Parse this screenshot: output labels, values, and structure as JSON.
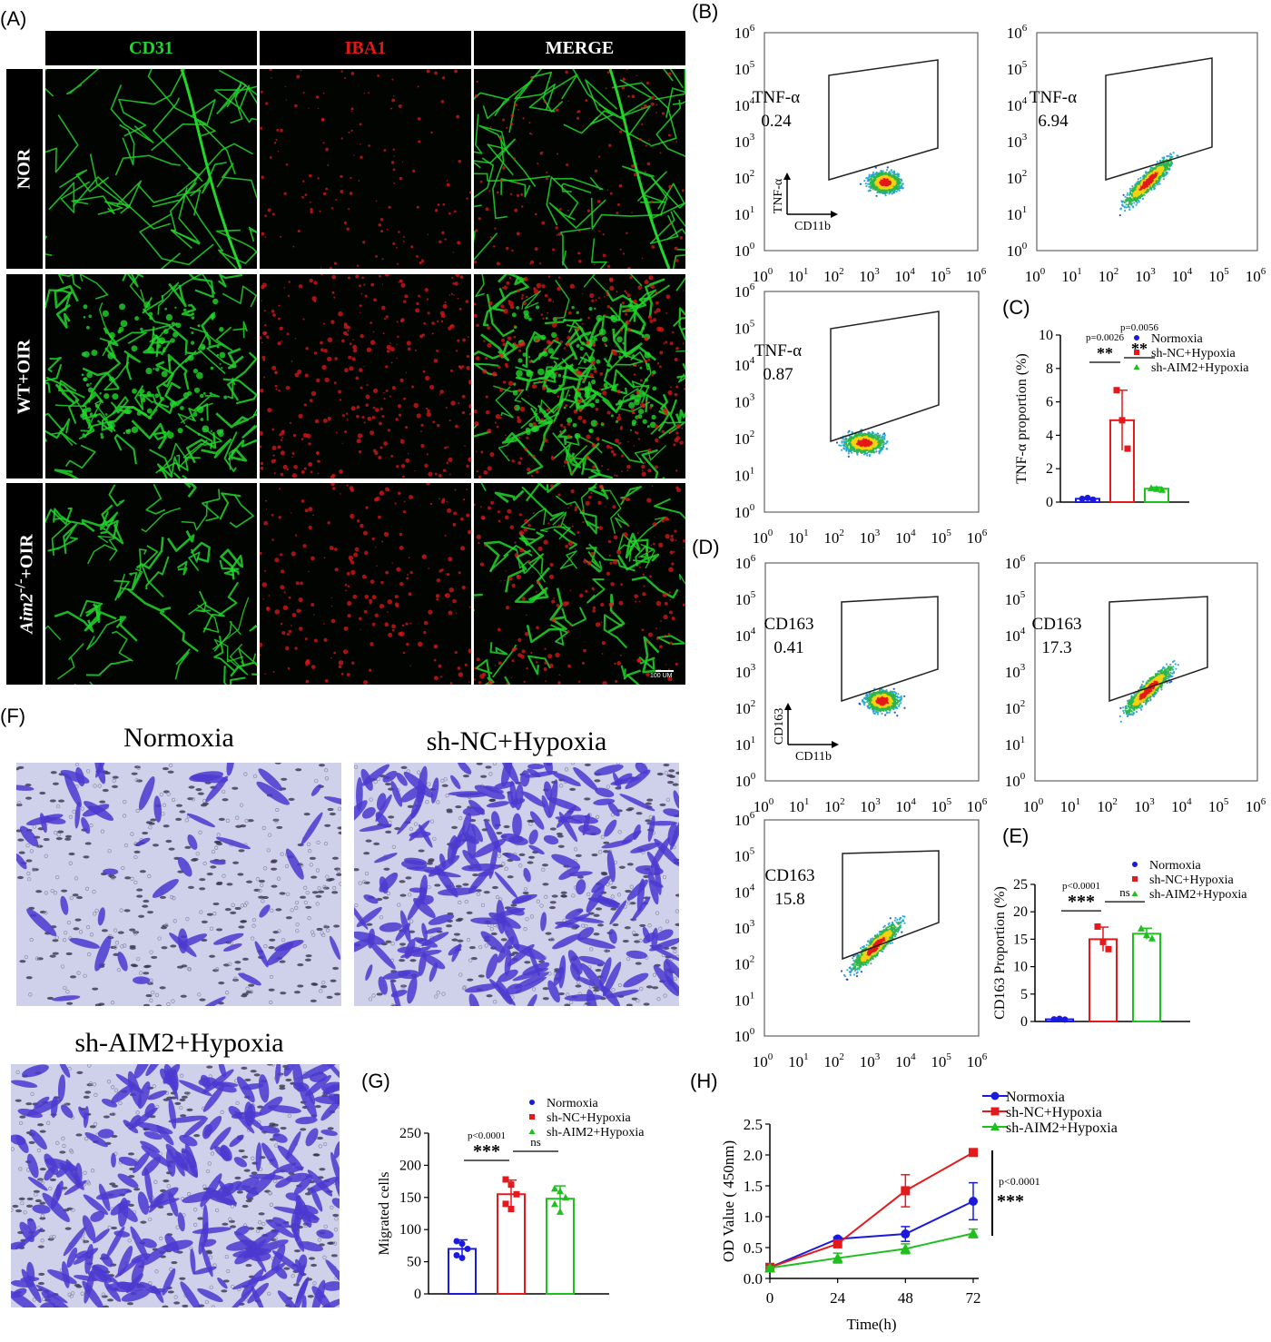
{
  "panel_labels": {
    "A": "(A)",
    "B": "(B)",
    "C": "(C)",
    "D": "(D)",
    "E": "(E)",
    "F": "(F)",
    "G": "(G)",
    "H": "(H)"
  },
  "colors": {
    "normoxia": "#1a1adf",
    "shnc": "#e3191c",
    "shaim2": "#1fbf1f",
    "cd31": "#22d62a",
    "iba1": "#e01818"
  },
  "panel_A": {
    "columns": [
      "CD31",
      "IBA1",
      "MERGE"
    ],
    "rows": [
      "NOR",
      "WT+OIR",
      "Aim2-/-+OIR"
    ],
    "row3_parts": {
      "gene": "Aim2",
      "sup": "-/-",
      "rest": "+OIR"
    },
    "scale_bar": "100 UM"
  },
  "flow_tnf": {
    "y_marker": "TNF-α",
    "x_marker": "CD11b",
    "tick_labels": [
      "10",
      "10",
      "10",
      "10",
      "10",
      "10",
      "10"
    ],
    "exponents": [
      "0",
      "1",
      "2",
      "3",
      "4",
      "5",
      "6"
    ],
    "plots": [
      {
        "gate_label": "TNF-α",
        "gate_value": "0.24"
      },
      {
        "gate_label": "TNF-α",
        "gate_value": "6.94"
      },
      {
        "gate_label": "TNF-α",
        "gate_value": "0.87"
      }
    ]
  },
  "flow_cd163": {
    "y_marker": "CD163",
    "x_marker": "CD11b",
    "plots": [
      {
        "gate_label": "CD163",
        "gate_value": "0.41"
      },
      {
        "gate_label": "CD163",
        "gate_value": "17.3"
      },
      {
        "gate_label": "CD163",
        "gate_value": "15.8"
      }
    ]
  },
  "legend": [
    "Normoxia",
    "sh-NC+Hypoxia",
    "sh-AIM2+Hypoxia"
  ],
  "panel_F": {
    "titles": [
      "Normoxia",
      "sh-NC+Hypoxia",
      "sh-AIM2+Hypoxia"
    ]
  },
  "chart_data": [
    {
      "panel": "C",
      "type": "bar",
      "categories": [
        "Normoxia",
        "sh-NC+Hypoxia",
        "sh-AIM2+Hypoxia"
      ],
      "values": [
        0.2,
        4.9,
        0.8
      ],
      "errors": [
        0.05,
        1.8,
        0.1
      ],
      "points": [
        [
          0.2,
          0.25,
          0.15
        ],
        [
          6.7,
          4.9,
          3.2
        ],
        [
          0.85,
          0.8,
          0.75
        ]
      ],
      "ylabel": "TNF-α proportion (%)",
      "ylim": [
        0,
        10
      ],
      "yticks": [
        0,
        2,
        4,
        6,
        8,
        10
      ],
      "annotations": [
        {
          "text": "p=0.0026",
          "stars": "**"
        },
        {
          "text": "p=0.0056",
          "stars": "**"
        }
      ]
    },
    {
      "panel": "E",
      "type": "bar",
      "categories": [
        "Normoxia",
        "sh-NC+Hypoxia",
        "sh-AIM2+Hypoxia"
      ],
      "values": [
        0.4,
        15,
        16
      ],
      "errors": [
        0.1,
        2.2,
        1.0
      ],
      "points": [
        [
          0.4,
          0.5,
          0.35
        ],
        [
          17.3,
          14.5,
          13.2
        ],
        [
          17,
          15.8,
          15.2
        ]
      ],
      "ylabel": "CD163 Proportion (%)",
      "ylim": [
        0,
        25
      ],
      "yticks": [
        0,
        5,
        10,
        15,
        20,
        25
      ],
      "annotations": [
        {
          "text": "p<0.0001",
          "stars": "***"
        },
        {
          "text": "ns",
          "stars": ""
        }
      ]
    },
    {
      "panel": "G",
      "type": "bar",
      "categories": [
        "Normoxia",
        "sh-NC+Hypoxia",
        "sh-AIM2+Hypoxia"
      ],
      "values": [
        70,
        155,
        148
      ],
      "errors": [
        14,
        22,
        20
      ],
      "points": [
        [
          82,
          78,
          70,
          60,
          56
        ],
        [
          178,
          170,
          155,
          140,
          132
        ],
        [
          164,
          160,
          150,
          140,
          128
        ]
      ],
      "ylabel": "Migrated cells",
      "ylim": [
        0,
        250
      ],
      "yticks": [
        0,
        50,
        100,
        150,
        200,
        250
      ],
      "annotations": [
        {
          "text": "p<0.0001",
          "stars": "***"
        },
        {
          "text": "ns",
          "stars": ""
        }
      ]
    },
    {
      "panel": "H",
      "type": "line",
      "x": [
        0,
        24,
        48,
        72
      ],
      "series": [
        {
          "name": "Normoxia",
          "values": [
            0.18,
            0.64,
            0.72,
            1.25
          ],
          "errors": [
            0.02,
            0.03,
            0.12,
            0.3
          ]
        },
        {
          "name": "sh-NC+Hypoxia",
          "values": [
            0.18,
            0.56,
            1.42,
            2.04
          ],
          "errors": [
            0.02,
            0.03,
            0.26,
            0.02
          ]
        },
        {
          "name": "sh-AIM2+Hypoxia",
          "values": [
            0.17,
            0.33,
            0.48,
            0.73
          ],
          "errors": [
            0.02,
            0.08,
            0.08,
            0.07
          ]
        }
      ],
      "xlabel": "Time(h)",
      "ylabel": "OD Value ( 450nm)",
      "ylim": [
        0,
        2.5
      ],
      "yticks": [
        0,
        0.5,
        1.0,
        1.5,
        2.0,
        2.5
      ],
      "ytick_labels": [
        "0.0",
        "0.5",
        "1.0",
        "1.5",
        "2.0",
        "2.5"
      ],
      "annotations": [
        {
          "text": "p<0.0001",
          "stars": "***"
        }
      ]
    }
  ]
}
